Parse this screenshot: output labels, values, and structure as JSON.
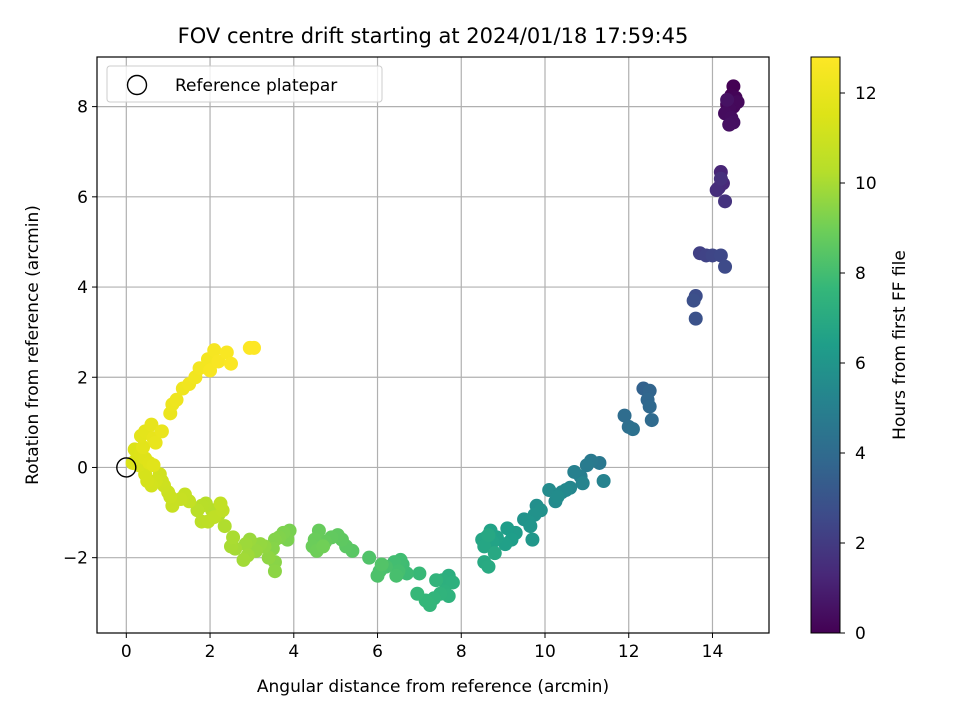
{
  "chart_data": {
    "type": "scatter",
    "title": "FOV centre drift starting at 2024/01/18 17:59:45",
    "xlabel": "Angular distance from reference (arcmin)",
    "ylabel": "Rotation from reference (arcmin)",
    "xlim": [
      -0.7,
      15.35
    ],
    "ylim": [
      -3.67,
      9.1
    ],
    "xticks": [
      0,
      2,
      4,
      6,
      8,
      10,
      12,
      14
    ],
    "yticks": [
      -2,
      0,
      2,
      4,
      6,
      8
    ],
    "grid": true,
    "legend": {
      "position": "top-left",
      "entries": [
        "Reference platepar"
      ]
    },
    "reference_point": {
      "x": 0,
      "y": 0
    },
    "colorbar": {
      "label": "Hours from first FF file",
      "range": [
        0,
        12.8
      ],
      "ticks": [
        0,
        2,
        4,
        6,
        8,
        10,
        12
      ],
      "colormap": "viridis"
    },
    "series": [
      {
        "columns": [
          "x",
          "y",
          "hours"
        ],
        "points": [
          [
            14.5,
            8.45,
            0.0
          ],
          [
            14.45,
            8.25,
            0.05
          ],
          [
            14.55,
            8.2,
            0.1
          ],
          [
            14.35,
            8.05,
            0.15
          ],
          [
            14.5,
            8.0,
            0.2
          ],
          [
            14.6,
            8.1,
            0.25
          ],
          [
            14.4,
            7.95,
            0.3
          ],
          [
            14.3,
            7.85,
            0.35
          ],
          [
            14.45,
            7.75,
            0.4
          ],
          [
            14.5,
            7.65,
            0.45
          ],
          [
            14.4,
            7.6,
            0.5
          ],
          [
            14.35,
            8.15,
            0.55
          ],
          [
            14.2,
            6.55,
            1.2
          ],
          [
            14.25,
            6.3,
            1.3
          ],
          [
            14.15,
            6.2,
            1.4
          ],
          [
            14.1,
            6.15,
            1.5
          ],
          [
            14.2,
            6.4,
            1.6
          ],
          [
            14.3,
            5.9,
            1.7
          ],
          [
            13.7,
            4.75,
            2.2
          ],
          [
            13.85,
            4.7,
            2.3
          ],
          [
            14.0,
            4.7,
            2.4
          ],
          [
            14.2,
            4.7,
            2.5
          ],
          [
            14.3,
            4.45,
            2.6
          ],
          [
            13.6,
            3.8,
            2.7
          ],
          [
            13.55,
            3.7,
            2.8
          ],
          [
            13.6,
            3.3,
            2.9
          ],
          [
            12.35,
            1.75,
            3.6
          ],
          [
            12.5,
            1.7,
            3.7
          ],
          [
            12.45,
            1.5,
            3.8
          ],
          [
            12.5,
            1.35,
            3.9
          ],
          [
            12.55,
            1.05,
            4.0
          ],
          [
            11.9,
            1.15,
            4.1
          ],
          [
            12.0,
            0.9,
            4.2
          ],
          [
            12.1,
            0.85,
            4.3
          ],
          [
            11.3,
            0.1,
            4.6
          ],
          [
            11.1,
            0.15,
            4.7
          ],
          [
            11.0,
            0.05,
            4.8
          ],
          [
            10.85,
            -0.2,
            4.9
          ],
          [
            10.7,
            -0.1,
            5.0
          ],
          [
            11.4,
            -0.3,
            5.1
          ],
          [
            10.9,
            -0.35,
            5.2
          ],
          [
            10.6,
            -0.45,
            5.3
          ],
          [
            10.4,
            -0.55,
            5.4
          ],
          [
            10.5,
            -0.5,
            5.45
          ],
          [
            10.25,
            -0.75,
            5.5
          ],
          [
            10.1,
            -0.5,
            5.55
          ],
          [
            10.3,
            -0.65,
            5.6
          ],
          [
            9.8,
            -0.85,
            5.7
          ],
          [
            9.9,
            -0.95,
            5.8
          ],
          [
            9.75,
            -1.05,
            5.85
          ],
          [
            9.5,
            -1.15,
            5.9
          ],
          [
            9.6,
            -1.2,
            5.95
          ],
          [
            9.65,
            -1.3,
            6.0
          ],
          [
            9.7,
            -1.6,
            6.1
          ],
          [
            9.3,
            -1.45,
            6.3
          ],
          [
            9.1,
            -1.35,
            6.35
          ],
          [
            9.2,
            -1.6,
            6.4
          ],
          [
            9.05,
            -1.7,
            6.5
          ],
          [
            8.85,
            -1.55,
            6.55
          ],
          [
            8.7,
            -1.4,
            6.6
          ],
          [
            8.75,
            -1.65,
            6.65
          ],
          [
            8.6,
            -1.55,
            6.7
          ],
          [
            8.5,
            -1.6,
            6.75
          ],
          [
            8.55,
            -1.75,
            6.8
          ],
          [
            8.65,
            -1.5,
            6.85
          ],
          [
            8.8,
            -1.9,
            6.9
          ],
          [
            8.55,
            -2.1,
            6.95
          ],
          [
            8.65,
            -2.2,
            7.0
          ],
          [
            7.7,
            -2.4,
            7.2
          ],
          [
            7.55,
            -2.5,
            7.25
          ],
          [
            7.8,
            -2.55,
            7.3
          ],
          [
            7.6,
            -2.75,
            7.35
          ],
          [
            7.7,
            -2.85,
            7.4
          ],
          [
            7.5,
            -2.8,
            7.45
          ],
          [
            7.4,
            -2.5,
            7.5
          ],
          [
            7.35,
            -2.9,
            7.55
          ],
          [
            7.25,
            -3.05,
            7.6
          ],
          [
            7.15,
            -2.95,
            7.65
          ],
          [
            6.95,
            -2.8,
            7.7
          ],
          [
            7.0,
            -2.35,
            7.75
          ],
          [
            6.7,
            -2.35,
            7.85
          ],
          [
            6.6,
            -2.15,
            7.9
          ],
          [
            6.55,
            -2.05,
            7.95
          ],
          [
            6.4,
            -2.1,
            8.0
          ],
          [
            6.5,
            -2.3,
            8.05
          ],
          [
            6.45,
            -2.4,
            8.1
          ],
          [
            6.2,
            -2.2,
            8.15
          ],
          [
            6.05,
            -2.3,
            8.2
          ],
          [
            6.0,
            -2.4,
            8.25
          ],
          [
            5.8,
            -2.0,
            8.3
          ],
          [
            6.1,
            -2.15,
            8.35
          ],
          [
            5.4,
            -1.85,
            8.5
          ],
          [
            5.25,
            -1.75,
            8.55
          ],
          [
            5.15,
            -1.6,
            8.6
          ],
          [
            5.05,
            -1.5,
            8.65
          ],
          [
            4.9,
            -1.55,
            8.7
          ],
          [
            4.75,
            -1.65,
            8.75
          ],
          [
            4.6,
            -1.4,
            8.8
          ],
          [
            4.5,
            -1.6,
            8.85
          ],
          [
            4.45,
            -1.75,
            8.9
          ],
          [
            4.55,
            -1.85,
            8.95
          ],
          [
            4.7,
            -1.75,
            9.0
          ],
          [
            3.9,
            -1.4,
            9.15
          ],
          [
            3.85,
            -1.6,
            9.2
          ],
          [
            3.75,
            -1.45,
            9.25
          ],
          [
            3.65,
            -1.55,
            9.3
          ],
          [
            3.55,
            -1.6,
            9.35
          ],
          [
            3.5,
            -1.8,
            9.4
          ],
          [
            3.55,
            -2.1,
            9.45
          ],
          [
            3.55,
            -2.3,
            9.5
          ],
          [
            3.4,
            -2.0,
            9.55
          ],
          [
            3.3,
            -1.75,
            9.6
          ],
          [
            3.2,
            -1.7,
            9.65
          ],
          [
            3.1,
            -1.85,
            9.7
          ],
          [
            2.95,
            -1.6,
            9.75
          ],
          [
            2.85,
            -1.7,
            9.8
          ],
          [
            2.9,
            -1.95,
            9.85
          ],
          [
            2.8,
            -2.05,
            9.9
          ],
          [
            2.6,
            -1.8,
            9.95
          ],
          [
            2.5,
            -1.75,
            10.0
          ],
          [
            2.55,
            -1.55,
            10.05
          ],
          [
            2.35,
            -1.3,
            10.15
          ],
          [
            2.2,
            -1.05,
            10.2
          ],
          [
            2.05,
            -0.95,
            10.25
          ],
          [
            1.9,
            -0.8,
            10.3
          ],
          [
            1.8,
            -0.85,
            10.35
          ],
          [
            1.7,
            -0.95,
            10.4
          ],
          [
            1.8,
            -1.2,
            10.45
          ],
          [
            1.95,
            -1.2,
            10.5
          ],
          [
            2.1,
            -1.1,
            10.55
          ],
          [
            2.3,
            -0.95,
            10.6
          ],
          [
            2.25,
            -0.8,
            10.65
          ],
          [
            1.5,
            -0.75,
            10.7
          ],
          [
            1.4,
            -0.6,
            10.75
          ],
          [
            1.3,
            -0.7,
            10.8
          ],
          [
            1.1,
            -0.85,
            10.85
          ],
          [
            1.05,
            -0.65,
            10.9
          ],
          [
            1.0,
            -0.55,
            10.95
          ],
          [
            0.9,
            -0.4,
            11.0
          ],
          [
            0.85,
            -0.3,
            11.05
          ],
          [
            0.8,
            -0.15,
            11.1
          ],
          [
            0.7,
            -0.3,
            11.15
          ],
          [
            0.6,
            -0.4,
            11.2
          ],
          [
            0.5,
            -0.3,
            11.25
          ],
          [
            0.45,
            -0.15,
            11.3
          ],
          [
            0.3,
            0.05,
            11.35
          ],
          [
            0.25,
            0.2,
            11.4
          ],
          [
            0.15,
            0.1,
            11.45
          ],
          [
            0.2,
            0.4,
            11.5
          ],
          [
            0.35,
            0.3,
            11.55
          ],
          [
            0.45,
            0.2,
            11.6
          ],
          [
            0.55,
            0.1,
            11.65
          ],
          [
            0.65,
            0.05,
            11.7
          ],
          [
            0.4,
            0.45,
            11.75
          ],
          [
            0.35,
            0.7,
            11.8
          ],
          [
            0.45,
            0.8,
            11.85
          ],
          [
            0.6,
            0.95,
            11.9
          ],
          [
            0.65,
            0.65,
            11.95
          ],
          [
            0.7,
            0.55,
            12.0
          ],
          [
            0.85,
            0.8,
            12.05
          ],
          [
            1.05,
            1.2,
            12.1
          ],
          [
            1.1,
            1.4,
            12.15
          ],
          [
            1.2,
            1.5,
            12.2
          ],
          [
            1.35,
            1.75,
            12.25
          ],
          [
            1.5,
            1.85,
            12.3
          ],
          [
            1.65,
            2.0,
            12.35
          ],
          [
            1.75,
            2.2,
            12.4
          ],
          [
            1.95,
            2.4,
            12.45
          ],
          [
            2.1,
            2.6,
            12.5
          ],
          [
            2.0,
            2.15,
            12.55
          ],
          [
            2.2,
            2.35,
            12.6
          ],
          [
            2.4,
            2.55,
            12.65
          ],
          [
            2.5,
            2.3,
            12.7
          ],
          [
            2.95,
            2.65,
            12.75
          ],
          [
            3.05,
            2.65,
            12.8
          ]
        ]
      }
    ]
  }
}
